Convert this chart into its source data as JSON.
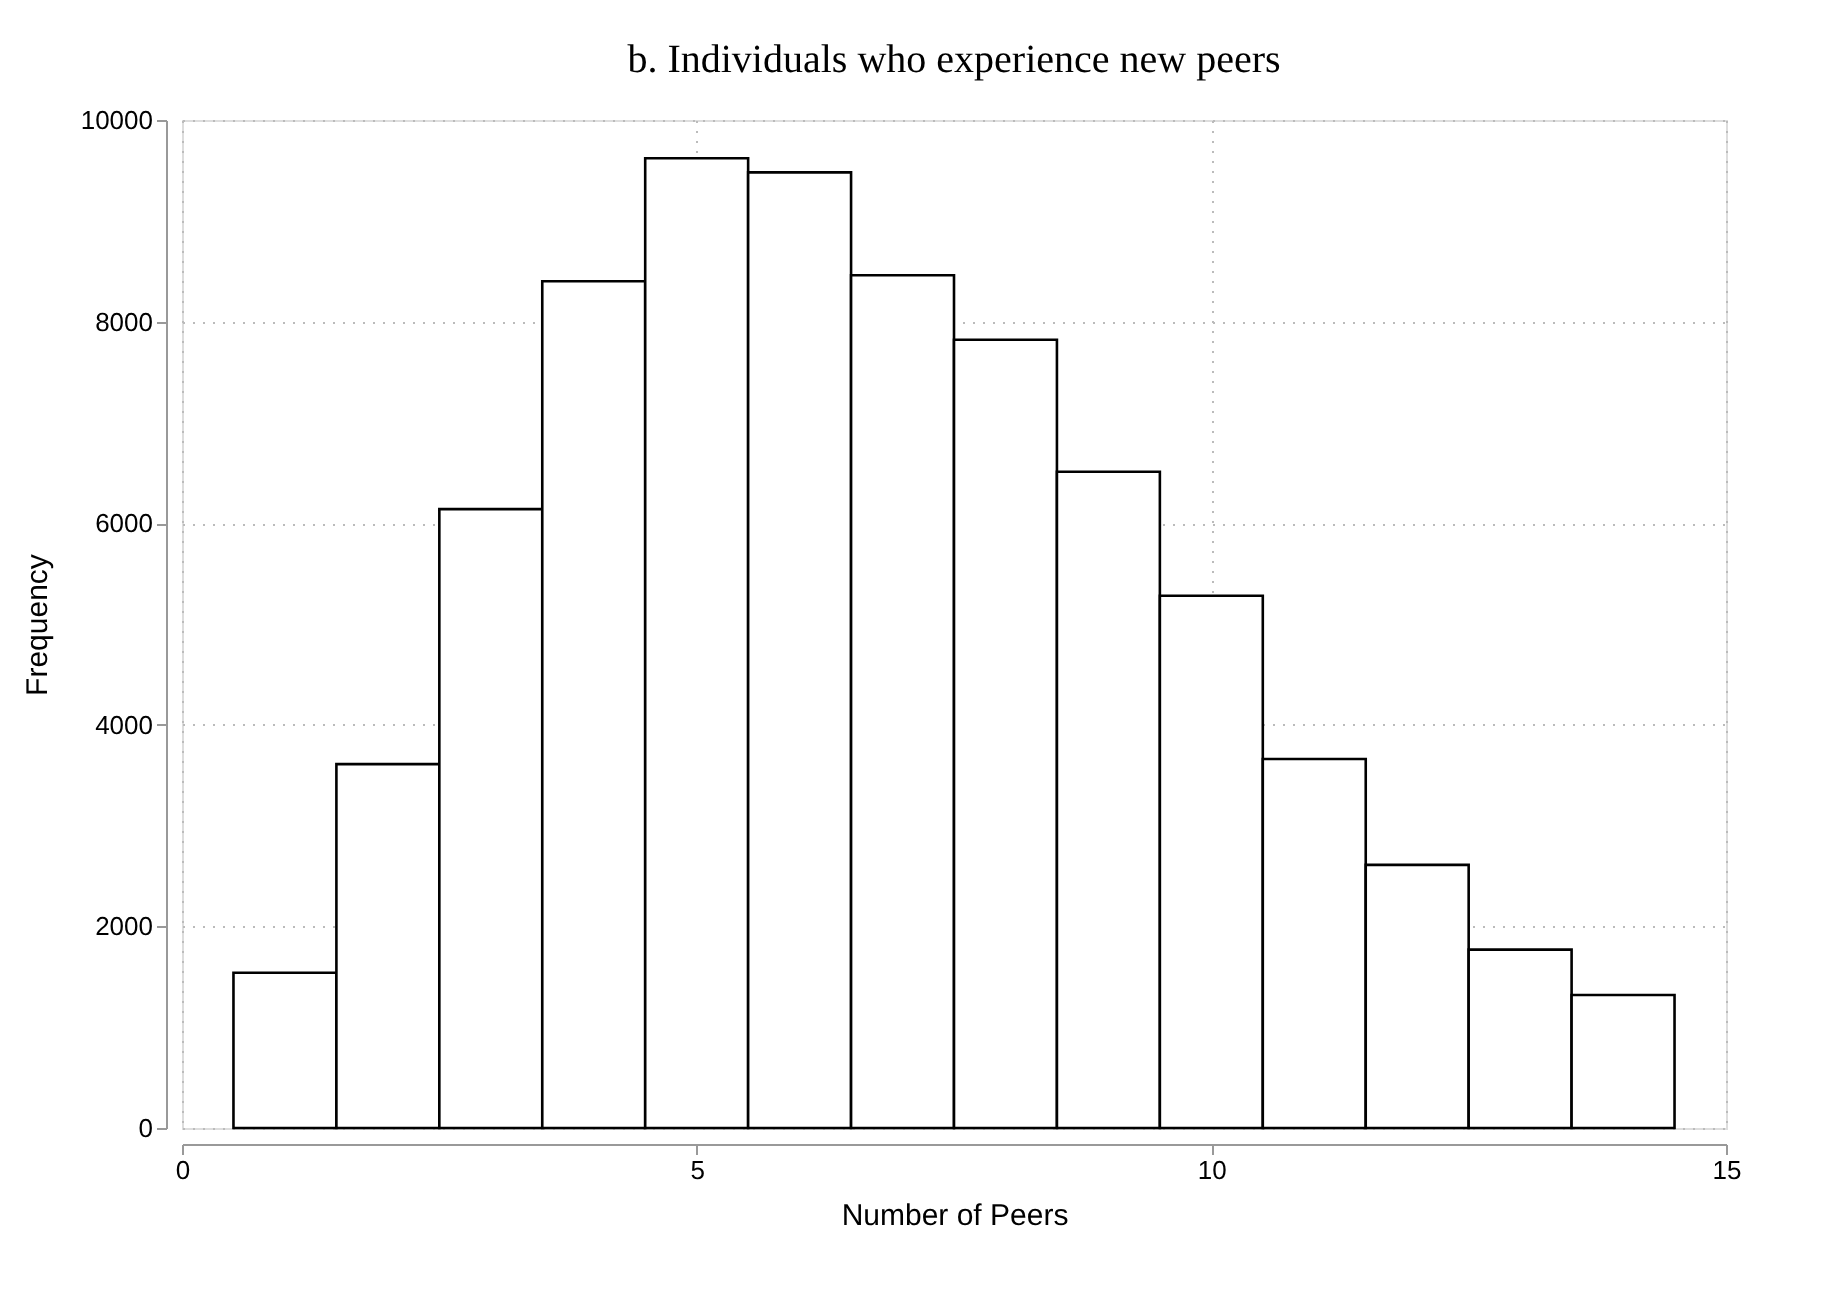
{
  "chart_data": {
    "type": "histogram",
    "title": "b.   Individuals who experience new peers",
    "xlabel": "Number of Peers",
    "ylabel": "Frequency",
    "bins": [
      0.5,
      1.5,
      2.5,
      3.5,
      4.5,
      5.5,
      6.5,
      7.5,
      8.5,
      9.5,
      10.5,
      11.5,
      12.5,
      13.5,
      14.5
    ],
    "values": [
      1540,
      3610,
      6140,
      8400,
      9620,
      9480,
      8460,
      7820,
      6510,
      5280,
      3660,
      2610,
      1770,
      1320
    ],
    "color": "#ffffff",
    "xlim": [
      0,
      15
    ],
    "xticks": [
      0,
      5,
      10,
      15
    ],
    "ylim": [
      0,
      10000
    ],
    "yticks": [
      0,
      2000,
      4000,
      6000,
      8000,
      10000
    ],
    "grid": true
  }
}
